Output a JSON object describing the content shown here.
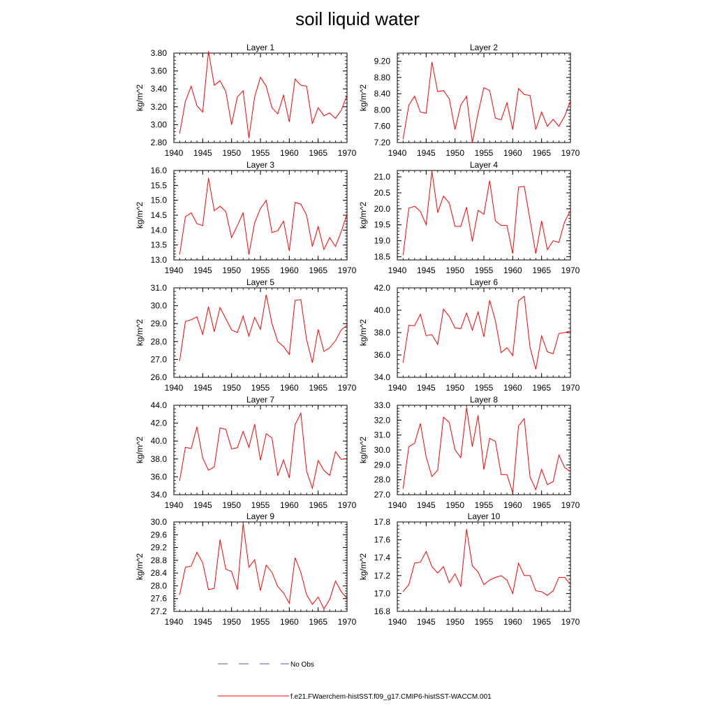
{
  "title": "soil liquid water",
  "legend": {
    "entries": [
      {
        "label": "No Obs",
        "color": "#5a5aa0",
        "style": "dashed"
      },
      {
        "label": "f.e21.FWaerchem-histSST.f09_g17.CMIP6-histSST-WACCM.001",
        "color": "#ff0000",
        "style": "solid"
      }
    ]
  },
  "chart_data": [
    {
      "type": "line",
      "title": "Layer 1",
      "ylabel": "kg/m^2",
      "xlim": [
        1940,
        1970
      ],
      "ylim": [
        2.8,
        3.8
      ],
      "xticks": [
        1940,
        1945,
        1950,
        1955,
        1960,
        1965,
        1970
      ],
      "yticks": [
        "2.80",
        "3.00",
        "3.20",
        "3.40",
        "3.60",
        "3.80"
      ],
      "x": [
        1941,
        1942,
        1943,
        1944,
        1945,
        1946,
        1947,
        1948,
        1949,
        1950,
        1951,
        1952,
        1953,
        1954,
        1955,
        1956,
        1957,
        1958,
        1959,
        1960,
        1961,
        1962,
        1963,
        1964,
        1965,
        1966,
        1967,
        1968,
        1969,
        1970
      ],
      "series": [
        {
          "color": "#ff0000",
          "values": [
            2.9,
            3.26,
            3.43,
            3.21,
            3.14,
            3.82,
            3.44,
            3.49,
            3.37,
            3.0,
            3.31,
            3.38,
            2.85,
            3.31,
            3.53,
            3.43,
            3.19,
            3.12,
            3.33,
            3.03,
            3.51,
            3.44,
            3.43,
            3.01,
            3.19,
            3.1,
            3.13,
            3.07,
            3.16,
            3.33
          ]
        }
      ]
    },
    {
      "type": "line",
      "title": "Layer 2",
      "ylabel": "kg/m^2",
      "xlim": [
        1940,
        1970
      ],
      "ylim": [
        7.2,
        9.4
      ],
      "xticks": [
        1940,
        1945,
        1950,
        1955,
        1960,
        1965,
        1970
      ],
      "yticks": [
        "7.20",
        "7.60",
        "8.00",
        "8.40",
        "8.80",
        "9.20"
      ],
      "x": [
        1941,
        1942,
        1943,
        1944,
        1945,
        1946,
        1947,
        1948,
        1949,
        1950,
        1951,
        1952,
        1953,
        1954,
        1955,
        1956,
        1957,
        1958,
        1959,
        1960,
        1961,
        1962,
        1963,
        1964,
        1965,
        1966,
        1967,
        1968,
        1969,
        1970
      ],
      "series": [
        {
          "color": "#ff0000",
          "values": [
            7.28,
            8.12,
            8.34,
            7.95,
            7.92,
            9.18,
            8.45,
            8.48,
            8.28,
            7.52,
            8.12,
            8.34,
            7.2,
            7.92,
            8.55,
            8.48,
            7.8,
            7.76,
            8.18,
            7.52,
            8.53,
            8.38,
            8.36,
            7.52,
            7.95,
            7.6,
            7.77,
            7.6,
            7.85,
            8.22
          ]
        }
      ]
    },
    {
      "type": "line",
      "title": "Layer 3",
      "ylabel": "kg/m^2",
      "xlim": [
        1940,
        1970
      ],
      "ylim": [
        13.0,
        16.0
      ],
      "xticks": [
        1940,
        1945,
        1950,
        1955,
        1960,
        1965,
        1970
      ],
      "yticks": [
        "13.0",
        "13.5",
        "14.0",
        "14.5",
        "15.0",
        "15.5",
        "16.0"
      ],
      "x": [
        1941,
        1942,
        1943,
        1944,
        1945,
        1946,
        1947,
        1948,
        1949,
        1950,
        1951,
        1952,
        1953,
        1954,
        1955,
        1956,
        1957,
        1958,
        1959,
        1960,
        1961,
        1962,
        1963,
        1964,
        1965,
        1966,
        1967,
        1968,
        1969,
        1970
      ],
      "series": [
        {
          "color": "#ff0000",
          "values": [
            13.18,
            14.45,
            14.58,
            14.22,
            14.15,
            15.75,
            14.65,
            14.8,
            14.62,
            13.75,
            14.15,
            14.58,
            13.18,
            14.25,
            14.72,
            15.0,
            13.92,
            13.98,
            14.3,
            13.3,
            14.93,
            14.87,
            14.5,
            13.45,
            14.12,
            13.35,
            13.75,
            13.45,
            13.95,
            14.55
          ]
        }
      ]
    },
    {
      "type": "line",
      "title": "Layer 4",
      "ylabel": "kg/m^2",
      "xlim": [
        1940,
        1970
      ],
      "ylim": [
        18.4,
        21.2
      ],
      "xticks": [
        1940,
        1945,
        1950,
        1955,
        1960,
        1965,
        1970
      ],
      "yticks": [
        "18.5",
        "19.0",
        "19.5",
        "20.0",
        "20.5",
        "21.0"
      ],
      "x": [
        1941,
        1942,
        1943,
        1944,
        1945,
        1946,
        1947,
        1948,
        1949,
        1950,
        1951,
        1952,
        1953,
        1954,
        1955,
        1956,
        1957,
        1958,
        1959,
        1960,
        1961,
        1962,
        1963,
        1964,
        1965,
        1966,
        1967,
        1968,
        1969,
        1970
      ],
      "series": [
        {
          "color": "#ff0000",
          "values": [
            18.55,
            20.02,
            20.08,
            19.92,
            19.5,
            21.18,
            19.88,
            20.4,
            20.18,
            19.45,
            19.45,
            20.05,
            18.98,
            19.95,
            19.83,
            20.88,
            19.62,
            19.48,
            19.48,
            18.6,
            20.68,
            20.7,
            19.65,
            18.6,
            19.62,
            18.72,
            19.0,
            18.95,
            19.6,
            19.95
          ]
        }
      ]
    },
    {
      "type": "line",
      "title": "Layer 5",
      "ylabel": "kg/m^2",
      "xlim": [
        1940,
        1970
      ],
      "ylim": [
        26.0,
        31.0
      ],
      "xticks": [
        1940,
        1945,
        1950,
        1955,
        1960,
        1965,
        1970
      ],
      "yticks": [
        "26.0",
        "27.0",
        "28.0",
        "29.0",
        "30.0",
        "31.0"
      ],
      "x": [
        1941,
        1942,
        1943,
        1944,
        1945,
        1946,
        1947,
        1948,
        1949,
        1950,
        1951,
        1952,
        1953,
        1954,
        1955,
        1956,
        1957,
        1958,
        1959,
        1960,
        1961,
        1962,
        1963,
        1964,
        1965,
        1966,
        1967,
        1968,
        1969,
        1970
      ],
      "series": [
        {
          "color": "#ff0000",
          "values": [
            26.92,
            29.12,
            29.22,
            29.38,
            28.4,
            29.95,
            28.55,
            29.9,
            29.28,
            28.65,
            28.5,
            29.42,
            28.3,
            29.35,
            28.68,
            30.62,
            29.0,
            28.0,
            27.72,
            27.28,
            30.3,
            30.35,
            28.1,
            26.82,
            28.68,
            27.45,
            27.65,
            28.05,
            28.65,
            28.92
          ]
        }
      ]
    },
    {
      "type": "line",
      "title": "Layer 6",
      "ylabel": "kg/m^2",
      "xlim": [
        1940,
        1970
      ],
      "ylim": [
        34.0,
        42.0
      ],
      "xticks": [
        1940,
        1945,
        1950,
        1955,
        1960,
        1965,
        1970
      ],
      "yticks": [
        "34.0",
        "36.0",
        "38.0",
        "40.0",
        "42.0"
      ],
      "x": [
        1941,
        1942,
        1943,
        1944,
        1945,
        1946,
        1947,
        1948,
        1949,
        1950,
        1951,
        1952,
        1953,
        1954,
        1955,
        1956,
        1957,
        1958,
        1959,
        1960,
        1961,
        1962,
        1963,
        1964,
        1965,
        1966,
        1967,
        1968,
        1969,
        1970
      ],
      "series": [
        {
          "color": "#ff0000",
          "values": [
            35.3,
            38.65,
            38.62,
            39.65,
            37.72,
            37.82,
            36.95,
            40.1,
            39.45,
            38.42,
            38.35,
            39.75,
            38.22,
            39.85,
            37.62,
            40.9,
            39.05,
            36.2,
            36.65,
            35.95,
            40.85,
            41.25,
            36.68,
            34.72,
            37.7,
            36.28,
            36.1,
            37.92,
            38.0,
            38.15
          ]
        }
      ]
    },
    {
      "type": "line",
      "title": "Layer 7",
      "ylabel": "kg/m^2",
      "xlim": [
        1940,
        1970
      ],
      "ylim": [
        34.0,
        44.0
      ],
      "xticks": [
        1940,
        1945,
        1950,
        1955,
        1960,
        1965,
        1970
      ],
      "yticks": [
        "34.0",
        "36.0",
        "38.0",
        "40.0",
        "42.0",
        "44.0"
      ],
      "x": [
        1941,
        1942,
        1943,
        1944,
        1945,
        1946,
        1947,
        1948,
        1949,
        1950,
        1951,
        1952,
        1953,
        1954,
        1955,
        1956,
        1957,
        1958,
        1959,
        1960,
        1961,
        1962,
        1963,
        1964,
        1965,
        1966,
        1967,
        1968,
        1969,
        1970
      ],
      "series": [
        {
          "color": "#ff0000",
          "values": [
            35.55,
            39.3,
            39.15,
            41.6,
            38.1,
            36.75,
            37.1,
            41.45,
            41.32,
            39.12,
            39.25,
            41.08,
            39.3,
            41.88,
            37.85,
            40.82,
            40.35,
            36.12,
            37.88,
            35.88,
            41.82,
            43.12,
            36.62,
            34.72,
            37.82,
            36.72,
            36.15,
            38.82,
            37.95,
            38.05
          ]
        }
      ]
    },
    {
      "type": "line",
      "title": "Layer 8",
      "ylabel": "kg/m^2",
      "xlim": [
        1940,
        1970
      ],
      "ylim": [
        27.0,
        33.0
      ],
      "xticks": [
        1940,
        1945,
        1950,
        1955,
        1960,
        1965,
        1970
      ],
      "yticks": [
        "27.0",
        "28.0",
        "29.0",
        "30.0",
        "31.0",
        "32.0",
        "33.0"
      ],
      "x": [
        1941,
        1942,
        1943,
        1944,
        1945,
        1946,
        1947,
        1948,
        1949,
        1950,
        1951,
        1952,
        1953,
        1954,
        1955,
        1956,
        1957,
        1958,
        1959,
        1960,
        1961,
        1962,
        1963,
        1964,
        1965,
        1966,
        1967,
        1968,
        1969,
        1970
      ],
      "series": [
        {
          "color": "#ff0000",
          "values": [
            27.4,
            30.22,
            30.45,
            31.78,
            29.55,
            28.22,
            28.65,
            32.2,
            31.85,
            30.02,
            29.48,
            32.85,
            30.22,
            32.32,
            28.68,
            30.78,
            30.58,
            28.35,
            28.35,
            27.12,
            31.62,
            32.1,
            28.18,
            27.35,
            28.7,
            27.68,
            27.88,
            29.65,
            28.82,
            28.55
          ]
        }
      ]
    },
    {
      "type": "line",
      "title": "Layer 9",
      "ylabel": "kg/m^2",
      "xlim": [
        1940,
        1970
      ],
      "ylim": [
        27.2,
        30.0
      ],
      "xticks": [
        1940,
        1945,
        1950,
        1955,
        1960,
        1965,
        1970
      ],
      "yticks": [
        "27.2",
        "27.6",
        "28.0",
        "28.4",
        "28.8",
        "29.2",
        "29.6",
        "30.0"
      ],
      "x": [
        1941,
        1942,
        1943,
        1944,
        1945,
        1946,
        1947,
        1948,
        1949,
        1950,
        1951,
        1952,
        1953,
        1954,
        1955,
        1956,
        1957,
        1958,
        1959,
        1960,
        1961,
        1962,
        1963,
        1964,
        1965,
        1966,
        1967,
        1968,
        1969,
        1970
      ],
      "series": [
        {
          "color": "#ff0000",
          "values": [
            27.72,
            28.58,
            28.62,
            29.05,
            28.72,
            27.88,
            27.92,
            29.45,
            28.52,
            28.45,
            27.88,
            29.95,
            28.58,
            28.82,
            27.85,
            28.65,
            28.42,
            27.98,
            27.78,
            27.45,
            28.88,
            28.42,
            27.72,
            27.42,
            27.65,
            27.28,
            27.58,
            28.15,
            27.82,
            27.6
          ]
        }
      ]
    },
    {
      "type": "line",
      "title": "Layer 10",
      "ylabel": "kg/m^2",
      "xlim": [
        1940,
        1970
      ],
      "ylim": [
        16.8,
        17.8
      ],
      "xticks": [
        1940,
        1945,
        1950,
        1955,
        1960,
        1965,
        1970
      ],
      "yticks": [
        "16.8",
        "17.0",
        "17.2",
        "17.4",
        "17.6",
        "17.8"
      ],
      "x": [
        1941,
        1942,
        1943,
        1944,
        1945,
        1946,
        1947,
        1948,
        1949,
        1950,
        1951,
        1952,
        1953,
        1954,
        1955,
        1956,
        1957,
        1958,
        1959,
        1960,
        1961,
        1962,
        1963,
        1964,
        1965,
        1966,
        1967,
        1968,
        1969,
        1970
      ],
      "series": [
        {
          "color": "#ff0000",
          "values": [
            17.02,
            17.1,
            17.34,
            17.35,
            17.47,
            17.3,
            17.23,
            17.3,
            17.12,
            17.22,
            17.08,
            17.72,
            17.31,
            17.24,
            17.1,
            17.15,
            17.18,
            17.2,
            17.15,
            17.0,
            17.34,
            17.2,
            17.2,
            17.03,
            17.02,
            16.98,
            17.03,
            17.18,
            17.18,
            17.1
          ]
        }
      ]
    }
  ]
}
